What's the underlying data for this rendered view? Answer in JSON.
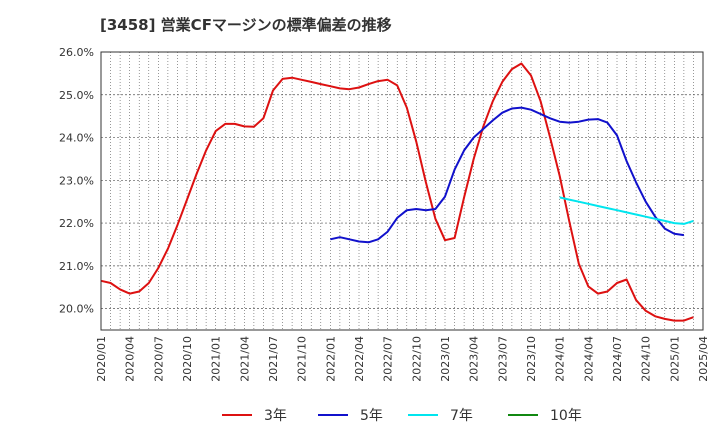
{
  "chart_data": {
    "type": "line",
    "title": "[3458]  営業CFマージンの標準偏差の推移",
    "xlabel": "",
    "ylabel": "",
    "ylim": [
      19.5,
      26.0
    ],
    "y_ticks": [
      20.0,
      21.0,
      22.0,
      23.0,
      24.0,
      25.0,
      26.0
    ],
    "y_tick_labels": [
      "20.0%",
      "21.0%",
      "22.0%",
      "23.0%",
      "24.0%",
      "25.0%",
      "26.0%"
    ],
    "x_tick_labels": [
      "2020/01",
      "2020/04",
      "2020/07",
      "2020/10",
      "2021/01",
      "2021/04",
      "2021/07",
      "2021/10",
      "2022/01",
      "2022/04",
      "2022/07",
      "2022/10",
      "2023/01",
      "2023/04",
      "2023/07",
      "2023/10",
      "2024/01",
      "2024/04",
      "2024/07",
      "2024/10",
      "2025/01",
      "2025/04"
    ],
    "grid": true,
    "legend_position": "bottom",
    "series": [
      {
        "name": "3年",
        "color": "#dd1111",
        "start": "2020/01",
        "values": [
          20.65,
          20.6,
          20.45,
          20.35,
          20.4,
          20.6,
          20.95,
          21.4,
          21.95,
          22.55,
          23.15,
          23.7,
          24.15,
          24.32,
          24.32,
          24.26,
          24.25,
          24.45,
          25.1,
          25.37,
          25.4,
          25.35,
          25.3,
          25.25,
          25.2,
          25.15,
          25.13,
          25.17,
          25.25,
          25.32,
          25.35,
          25.22,
          24.7,
          23.9,
          22.95,
          22.1,
          21.6,
          21.65,
          22.6,
          23.5,
          24.25,
          24.85,
          25.3,
          25.6,
          25.73,
          25.45,
          24.85,
          24.0,
          23.1,
          22.05,
          21.05,
          20.52,
          20.35,
          20.4,
          20.6,
          20.68,
          20.2,
          19.95,
          19.82,
          19.76,
          19.72,
          19.72,
          19.8
        ]
      },
      {
        "name": "5年",
        "color": "#1111cc",
        "start": "2022/01",
        "values": [
          21.62,
          21.67,
          21.62,
          21.57,
          21.55,
          21.62,
          21.8,
          22.12,
          22.3,
          22.33,
          22.3,
          22.33,
          22.62,
          23.25,
          23.7,
          24.0,
          24.2,
          24.4,
          24.58,
          24.68,
          24.7,
          24.65,
          24.55,
          24.45,
          24.37,
          24.35,
          24.37,
          24.42,
          24.43,
          24.35,
          24.05,
          23.45,
          22.95,
          22.5,
          22.15,
          21.87,
          21.75,
          21.72
        ]
      },
      {
        "name": "7年",
        "color": "#00e5ee",
        "start": "2024/01",
        "values": [
          22.6,
          22.55,
          22.5,
          22.45,
          22.4,
          22.35,
          22.3,
          22.25,
          22.2,
          22.15,
          22.1,
          22.05,
          22.0,
          21.98,
          22.05
        ]
      },
      {
        "name": "10年",
        "color": "#118811",
        "start": "2025/01",
        "values": []
      }
    ]
  }
}
